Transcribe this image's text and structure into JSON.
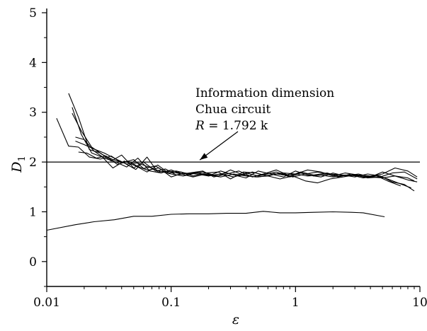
{
  "chart_data": {
    "type": "line",
    "xscale": "log",
    "xlim": [
      0.01,
      10
    ],
    "ylim": [
      -0.5,
      5
    ],
    "xticks": [
      {
        "value": 0.01,
        "label": "0.01"
      },
      {
        "value": 0.1,
        "label": "0.1"
      },
      {
        "value": 1,
        "label": "1"
      },
      {
        "value": 10,
        "label": "10"
      }
    ],
    "yticks": [
      {
        "value": 0,
        "label": "0"
      },
      {
        "value": 1,
        "label": "1"
      },
      {
        "value": 2,
        "label": "2"
      },
      {
        "value": 3,
        "label": "3"
      },
      {
        "value": 4,
        "label": "4"
      },
      {
        "value": 5,
        "label": "5"
      }
    ],
    "xlabel": "ε",
    "ylabel": {
      "main": "D",
      "sub": "1"
    },
    "grid": false,
    "reference_line": {
      "y": 2.0
    },
    "annotation": {
      "lines": [
        "Information dimension",
        "Chua circuit"
      ],
      "r_line": {
        "var": "R",
        "rest": " = 1.792 k"
      },
      "arrow_to": {
        "x": 0.17,
        "y": 2.0
      }
    },
    "series": [
      {
        "x": [
          0.012,
          0.015,
          0.018,
          0.022,
          0.027,
          0.033,
          0.04,
          0.05,
          0.06,
          0.075,
          0.09,
          0.11,
          0.14,
          0.18,
          0.22,
          0.28,
          0.35,
          0.45,
          0.55,
          0.7,
          0.9,
          1.1,
          1.4,
          1.8,
          2.2,
          2.8,
          3.5,
          4.5,
          5.5,
          7.0
        ],
        "y": [
          2.88,
          2.32,
          2.3,
          2.1,
          2.06,
          2.12,
          1.98,
          2.05,
          1.87,
          1.92,
          1.8,
          1.82,
          1.76,
          1.8,
          1.74,
          1.78,
          1.72,
          1.8,
          1.74,
          1.8,
          1.7,
          1.78,
          1.72,
          1.76,
          1.7,
          1.76,
          1.7,
          1.72,
          1.62,
          1.52
        ]
      },
      {
        "x": [
          0.015,
          0.018,
          0.022,
          0.027,
          0.033,
          0.04,
          0.05,
          0.06,
          0.075,
          0.09,
          0.11,
          0.14,
          0.18,
          0.22,
          0.28,
          0.35,
          0.45,
          0.55,
          0.7,
          0.9,
          1.1,
          1.4,
          1.8,
          2.2,
          2.8,
          3.5,
          4.5,
          5.5,
          7.0,
          8.5
        ],
        "y": [
          3.38,
          2.9,
          2.25,
          2.18,
          2.02,
          2.14,
          1.88,
          2.0,
          1.82,
          1.86,
          1.74,
          1.78,
          1.82,
          1.7,
          1.76,
          1.82,
          1.7,
          1.76,
          1.84,
          1.72,
          1.8,
          1.74,
          1.78,
          1.72,
          1.74,
          1.68,
          1.72,
          1.66,
          1.56,
          1.48
        ]
      },
      {
        "x": [
          0.016,
          0.019,
          0.023,
          0.028,
          0.034,
          0.042,
          0.052,
          0.064,
          0.078,
          0.095,
          0.12,
          0.15,
          0.19,
          0.24,
          0.3,
          0.38,
          0.48,
          0.6,
          0.75,
          0.95,
          1.2,
          1.5,
          1.9,
          2.4,
          3.0,
          3.8,
          4.8,
          6.0,
          7.5,
          9.0
        ],
        "y": [
          3.1,
          2.55,
          2.18,
          2.1,
          1.88,
          2.02,
          1.92,
          1.8,
          1.94,
          1.78,
          1.8,
          1.72,
          1.78,
          1.8,
          1.66,
          1.8,
          1.78,
          1.72,
          1.78,
          1.7,
          1.76,
          1.8,
          1.76,
          1.74,
          1.7,
          1.76,
          1.72,
          1.6,
          1.55,
          1.42
        ]
      },
      {
        "x": [
          0.017,
          0.02,
          0.024,
          0.029,
          0.036,
          0.044,
          0.054,
          0.066,
          0.08,
          0.1,
          0.125,
          0.16,
          0.2,
          0.25,
          0.32,
          0.4,
          0.5,
          0.63,
          0.8,
          1.0,
          1.25,
          1.6,
          2.0,
          2.5,
          3.2,
          4.0,
          5.0,
          6.3,
          8.0,
          9.5
        ],
        "y": [
          2.5,
          2.45,
          2.22,
          2.08,
          2.0,
          1.9,
          2.08,
          1.84,
          1.88,
          1.7,
          1.78,
          1.76,
          1.72,
          1.82,
          1.74,
          1.68,
          1.82,
          1.76,
          1.7,
          1.82,
          1.74,
          1.7,
          1.78,
          1.72,
          1.76,
          1.7,
          1.8,
          1.72,
          1.64,
          1.6
        ]
      },
      {
        "x": [
          0.016,
          0.019,
          0.023,
          0.028,
          0.034,
          0.042,
          0.052,
          0.064,
          0.078,
          0.095,
          0.12,
          0.15,
          0.19,
          0.24,
          0.3,
          0.38,
          0.48,
          0.6,
          0.75,
          0.95,
          1.2,
          1.5,
          1.9,
          2.4,
          3.0,
          3.8,
          4.8,
          6.0,
          7.5,
          9.5
        ],
        "y": [
          2.98,
          2.62,
          2.3,
          2.15,
          2.05,
          1.98,
          1.85,
          2.1,
          1.8,
          1.82,
          1.76,
          1.7,
          1.76,
          1.72,
          1.84,
          1.74,
          1.7,
          1.72,
          1.66,
          1.72,
          1.62,
          1.58,
          1.66,
          1.7,
          1.74,
          1.68,
          1.7,
          1.78,
          1.8,
          1.66
        ]
      },
      {
        "x": [
          0.018,
          0.021,
          0.025,
          0.03,
          0.037,
          0.045,
          0.055,
          0.068,
          0.083,
          0.1,
          0.13,
          0.16,
          0.2,
          0.25,
          0.32,
          0.4,
          0.5,
          0.63,
          0.8,
          1.0,
          1.25,
          1.6,
          2.0,
          2.5,
          3.2,
          4.0,
          5.0,
          6.3,
          8.0,
          9.5
        ],
        "y": [
          2.2,
          2.18,
          2.08,
          2.12,
          1.95,
          2.02,
          1.9,
          1.82,
          1.78,
          1.84,
          1.74,
          1.8,
          1.72,
          1.76,
          1.7,
          1.78,
          1.72,
          1.78,
          1.74,
          1.76,
          1.84,
          1.8,
          1.72,
          1.78,
          1.74,
          1.72,
          1.76,
          1.88,
          1.82,
          1.7
        ]
      },
      {
        "x": [
          0.017,
          0.02,
          0.024,
          0.029,
          0.036,
          0.044,
          0.054,
          0.066,
          0.08,
          0.1,
          0.125,
          0.16,
          0.2,
          0.25,
          0.32,
          0.4,
          0.5,
          0.63,
          0.8,
          1.0,
          1.25,
          1.6,
          2.0,
          2.5,
          3.2,
          4.0,
          5.0,
          6.3,
          8.0,
          9.0
        ],
        "y": [
          2.42,
          2.35,
          2.26,
          2.18,
          2.06,
          1.96,
          1.98,
          1.9,
          1.82,
          1.76,
          1.72,
          1.78,
          1.74,
          1.7,
          1.76,
          1.72,
          1.7,
          1.74,
          1.78,
          1.76,
          1.72,
          1.74,
          1.7,
          1.74,
          1.72,
          1.7,
          1.68,
          1.72,
          1.68,
          1.62
        ]
      },
      {
        "x": [
          0.01,
          0.017,
          0.024,
          0.035,
          0.05,
          0.07,
          0.1,
          0.14,
          0.2,
          0.28,
          0.4,
          0.55,
          0.75,
          1.0,
          1.4,
          2.0,
          2.8,
          3.5,
          5.2
        ],
        "y": [
          0.63,
          0.74,
          0.8,
          0.84,
          0.91,
          0.91,
          0.95,
          0.96,
          0.96,
          0.97,
          0.97,
          1.01,
          0.98,
          0.98,
          0.99,
          1.0,
          0.99,
          0.98,
          0.9
        ]
      }
    ]
  }
}
